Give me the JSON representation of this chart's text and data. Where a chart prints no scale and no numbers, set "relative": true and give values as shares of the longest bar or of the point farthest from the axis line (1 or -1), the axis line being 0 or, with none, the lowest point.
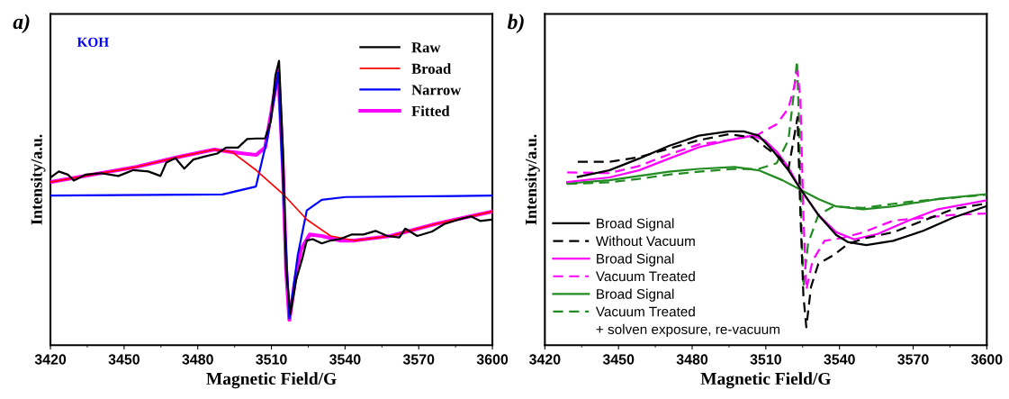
{
  "chart_data": [
    {
      "type": "line",
      "title": "a)",
      "xlabel": "Magnetic Field/G",
      "ylabel": "Intensity/a.u.",
      "relative": true,
      "tick_labels": "x",
      "legend": "top right",
      "line_style": "solid",
      "xlim": [
        3420,
        3600
      ],
      "xticks": [
        3420,
        3450,
        3480,
        3510,
        3540,
        3570,
        3600
      ],
      "annotations": [
        "KOH"
      ],
      "series": [
        {
          "name": "Raw",
          "color": "#000000",
          "x": [
            3420,
            3423.4,
            3427.1,
            3429.5,
            3434.4,
            3440.4,
            3447.7,
            3453.8,
            3459.9,
            3464.8,
            3467.2,
            3470.9,
            3474.5,
            3478.2,
            3483.0,
            3487.9,
            3491.5,
            3496.4,
            3500.1,
            3503.7,
            3507.4,
            3509.8,
            3511.6,
            3513.1,
            3514.7,
            3516.0,
            3517.7,
            3520.1,
            3522.6,
            3524.4,
            3526.8,
            3530.5,
            3534.1,
            3537.8,
            3542.6,
            3547.5,
            3552.4,
            3557.2,
            3562.1,
            3564.5,
            3569.4,
            3575.5,
            3580.4,
            3586.4,
            3591.3,
            3595.0,
            3600
          ],
          "values": [
            0.59,
            0.611,
            0.6,
            0.579,
            0.6,
            0.605,
            0.595,
            0.616,
            0.611,
            0.595,
            0.642,
            0.658,
            0.621,
            0.653,
            0.664,
            0.674,
            0.695,
            0.695,
            0.725,
            0.727,
            0.727,
            0.79,
            0.948,
            1.0,
            0.685,
            0.263,
            0.11,
            0.231,
            0.305,
            0.368,
            0.373,
            0.358,
            0.368,
            0.373,
            0.389,
            0.389,
            0.402,
            0.384,
            0.379,
            0.41,
            0.384,
            0.4,
            0.426,
            0.442,
            0.453,
            0.437,
            0.442
          ]
        },
        {
          "name": "Broad",
          "color": "#ff0000",
          "x": [
            3420,
            3455.0,
            3473.3,
            3486.7,
            3494.0,
            3503.7,
            3514.7,
            3524.4,
            3534.1,
            3543.8,
            3558.5,
            3576.7,
            3600
          ],
          "values": [
            0.574,
            0.627,
            0.664,
            0.688,
            0.679,
            0.616,
            0.532,
            0.442,
            0.384,
            0.368,
            0.384,
            0.426,
            0.47
          ]
        },
        {
          "name": "Narrow",
          "color": "#0000ff",
          "x": [
            3420,
            3490.0,
            3503.7,
            3508.6,
            3512.8,
            3514.7,
            3517.3,
            3520.7,
            3524.4,
            3530.5,
            3540.2,
            3600
          ],
          "values": [
            0.526,
            0.53,
            0.558,
            0.737,
            0.959,
            0.579,
            0.094,
            0.315,
            0.474,
            0.511,
            0.521,
            0.526
          ]
        },
        {
          "name": "Fitted",
          "color": "#ff00ff",
          "x": [
            3420,
            3455.0,
            3473.3,
            3486.7,
            3494.0,
            3498.8,
            3503.7,
            3507.4,
            3509.8,
            3512.8,
            3514.7,
            3516.0,
            3517.3,
            3519.5,
            3522.0,
            3525.6,
            3530.5,
            3537.8,
            3543.8,
            3558.5,
            3576.7,
            3600
          ],
          "values": [
            0.574,
            0.627,
            0.664,
            0.688,
            0.679,
            0.674,
            0.669,
            0.695,
            0.811,
            0.964,
            0.621,
            0.263,
            0.089,
            0.22,
            0.336,
            0.389,
            0.384,
            0.368,
            0.368,
            0.384,
            0.426,
            0.47
          ]
        }
      ]
    },
    {
      "type": "line",
      "title": "b)",
      "xlabel": "Magnetic Field/G",
      "ylabel": "Intensity/a.u.",
      "relative": true,
      "tick_labels": "x",
      "legend": "bottom left",
      "xlim": [
        3420,
        3600
      ],
      "xticks": [
        3420,
        3450,
        3480,
        3510,
        3540,
        3570,
        3600
      ],
      "annotations": [
        "+ solven exposure, re-vacuum"
      ],
      "series": [
        {
          "name": "Broad Signal",
          "color": "#000000",
          "line_style": "solid",
          "x": [
            3433.4,
            3446.2,
            3458.3,
            3470.5,
            3482.7,
            3494.9,
            3501.0,
            3507.1,
            3513.2,
            3519.2,
            3524.1,
            3531.4,
            3538.7,
            3543.6,
            3550.9,
            3561.9,
            3574.1,
            3586.2,
            3599.6
          ],
          "values": [
            0.592,
            0.615,
            0.656,
            0.701,
            0.737,
            0.752,
            0.752,
            0.737,
            0.681,
            0.615,
            0.549,
            0.458,
            0.387,
            0.362,
            0.352,
            0.367,
            0.402,
            0.448,
            0.488
          ]
        },
        {
          "name": "Without Vacuum",
          "color": "#000000",
          "line_style": "dashed",
          "x": [
            3433.4,
            3446.2,
            3458.3,
            3470.5,
            3482.7,
            3494.9,
            3504.6,
            3510.7,
            3515.6,
            3519.2,
            3521.1,
            3522.9,
            3524.1,
            3525.3,
            3526.5,
            3528.4,
            3531.4,
            3537.5,
            3543.6,
            3550.9,
            3561.9,
            3574.1,
            3586.2,
            3599.6
          ],
          "values": [
            0.645,
            0.645,
            0.661,
            0.691,
            0.721,
            0.742,
            0.731,
            0.691,
            0.661,
            0.62,
            0.711,
            0.802,
            0.458,
            0.174,
            0.063,
            0.205,
            0.286,
            0.316,
            0.357,
            0.377,
            0.397,
            0.438,
            0.478,
            0.498
          ]
        },
        {
          "name": "Broad Signal",
          "color": "#ff00ff",
          "line_style": "solid",
          "x": [
            3429.1,
            3446.2,
            3458.3,
            3470.5,
            3482.7,
            3494.9,
            3504.6,
            3509.5,
            3514.4,
            3519.2,
            3524.1,
            3531.4,
            3538.7,
            3546.0,
            3555.8,
            3568.0,
            3580.1,
            3599.6
          ],
          "values": [
            0.574,
            0.59,
            0.615,
            0.656,
            0.696,
            0.721,
            0.737,
            0.721,
            0.681,
            0.625,
            0.549,
            0.458,
            0.397,
            0.372,
            0.392,
            0.438,
            0.478,
            0.509
          ]
        },
        {
          "name": "Vacuum Treated",
          "color": "#ff00ff",
          "line_style": "dashed",
          "x": [
            3429.1,
            3446.2,
            3458.3,
            3470.5,
            3482.7,
            3494.9,
            3507.1,
            3514.4,
            3519.2,
            3521.7,
            3522.9,
            3524.1,
            3525.3,
            3526.5,
            3529.0,
            3533.9,
            3541.2,
            3549.7,
            3561.9,
            3574.1,
            3586.2,
            3599.6
          ],
          "values": [
            0.608,
            0.605,
            0.63,
            0.671,
            0.706,
            0.721,
            0.742,
            0.777,
            0.833,
            0.914,
            0.965,
            0.863,
            0.458,
            0.195,
            0.296,
            0.367,
            0.377,
            0.397,
            0.438,
            0.448,
            0.458,
            0.463
          ]
        },
        {
          "name": "Broad Signal",
          "color": "#228b22",
          "line_style": "solid",
          "x": [
            3429.1,
            3446.2,
            3458.3,
            3470.5,
            3482.7,
            3497.3,
            3507.1,
            3516.8,
            3524.7,
            3531.4,
            3538.7,
            3549.7,
            3561.9,
            3580.1,
            3599.6
          ],
          "values": [
            0.569,
            0.58,
            0.595,
            0.61,
            0.62,
            0.627,
            0.615,
            0.58,
            0.544,
            0.514,
            0.488,
            0.478,
            0.488,
            0.514,
            0.531
          ]
        },
        {
          "name": "Vacuum Treated",
          "color": "#228b22",
          "line_style": "dashed",
          "x": [
            3429.1,
            3446.2,
            3458.3,
            3470.5,
            3482.7,
            3497.3,
            3507.1,
            3514.4,
            3519.2,
            3521.1,
            3522.7,
            3523.6,
            3524.4,
            3525.3,
            3527.2,
            3531.4,
            3537.5,
            3549.7,
            3568.0,
            3599.6
          ],
          "values": [
            0.567,
            0.573,
            0.585,
            0.6,
            0.61,
            0.62,
            0.62,
            0.64,
            0.721,
            0.863,
            1.0,
            0.762,
            0.458,
            0.205,
            0.357,
            0.458,
            0.488,
            0.483,
            0.504,
            0.529
          ]
        }
      ]
    }
  ]
}
